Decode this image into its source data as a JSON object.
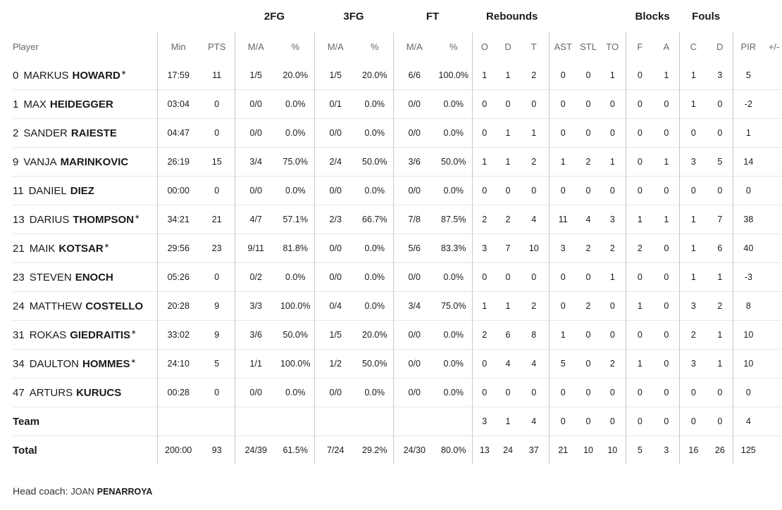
{
  "groups": {
    "fg2": "2FG",
    "fg3": "3FG",
    "ft": "FT",
    "rebounds": "Rebounds",
    "blocks": "Blocks",
    "fouls": "Fouls"
  },
  "columns": [
    "Player",
    "Min",
    "PTS",
    "M/A",
    "%",
    "M/A",
    "%",
    "M/A",
    "%",
    "O",
    "D",
    "T",
    "AST",
    "STL",
    "TO",
    "F",
    "A",
    "C",
    "D",
    "PIR",
    "+/-"
  ],
  "players": [
    {
      "num": "0",
      "first": "MARKUS",
      "last": "HOWARD",
      "starter": true,
      "stats": [
        "17:59",
        "11",
        "1/5",
        "20.0%",
        "1/5",
        "20.0%",
        "6/6",
        "100.0%",
        "1",
        "1",
        "2",
        "0",
        "0",
        "1",
        "0",
        "1",
        "1",
        "3",
        "5",
        ""
      ]
    },
    {
      "num": "1",
      "first": "MAX",
      "last": "HEIDEGGER",
      "starter": false,
      "stats": [
        "03:04",
        "0",
        "0/0",
        "0.0%",
        "0/1",
        "0.0%",
        "0/0",
        "0.0%",
        "0",
        "0",
        "0",
        "0",
        "0",
        "0",
        "0",
        "0",
        "1",
        "0",
        "-2",
        ""
      ]
    },
    {
      "num": "2",
      "first": "SANDER",
      "last": "RAIESTE",
      "starter": false,
      "stats": [
        "04:47",
        "0",
        "0/0",
        "0.0%",
        "0/0",
        "0.0%",
        "0/0",
        "0.0%",
        "0",
        "1",
        "1",
        "0",
        "0",
        "0",
        "0",
        "0",
        "0",
        "0",
        "1",
        ""
      ]
    },
    {
      "num": "9",
      "first": "VANJA",
      "last": "MARINKOVIC",
      "starter": false,
      "stats": [
        "26:19",
        "15",
        "3/4",
        "75.0%",
        "2/4",
        "50.0%",
        "3/6",
        "50.0%",
        "1",
        "1",
        "2",
        "1",
        "2",
        "1",
        "0",
        "1",
        "3",
        "5",
        "14",
        ""
      ]
    },
    {
      "num": "11",
      "first": "DANIEL",
      "last": "DIEZ",
      "starter": false,
      "stats": [
        "00:00",
        "0",
        "0/0",
        "0.0%",
        "0/0",
        "0.0%",
        "0/0",
        "0.0%",
        "0",
        "0",
        "0",
        "0",
        "0",
        "0",
        "0",
        "0",
        "0",
        "0",
        "0",
        ""
      ]
    },
    {
      "num": "13",
      "first": "DARIUS",
      "last": "THOMPSON",
      "starter": true,
      "stats": [
        "34:21",
        "21",
        "4/7",
        "57.1%",
        "2/3",
        "66.7%",
        "7/8",
        "87.5%",
        "2",
        "2",
        "4",
        "11",
        "4",
        "3",
        "1",
        "1",
        "1",
        "7",
        "38",
        ""
      ]
    },
    {
      "num": "21",
      "first": "MAIK",
      "last": "KOTSAR",
      "starter": true,
      "stats": [
        "29:56",
        "23",
        "9/11",
        "81.8%",
        "0/0",
        "0.0%",
        "5/6",
        "83.3%",
        "3",
        "7",
        "10",
        "3",
        "2",
        "2",
        "2",
        "0",
        "1",
        "6",
        "40",
        ""
      ]
    },
    {
      "num": "23",
      "first": "STEVEN",
      "last": "ENOCH",
      "starter": false,
      "stats": [
        "05:26",
        "0",
        "0/2",
        "0.0%",
        "0/0",
        "0.0%",
        "0/0",
        "0.0%",
        "0",
        "0",
        "0",
        "0",
        "0",
        "1",
        "0",
        "0",
        "1",
        "1",
        "-3",
        ""
      ]
    },
    {
      "num": "24",
      "first": "MATTHEW",
      "last": "COSTELLO",
      "starter": false,
      "stats": [
        "20:28",
        "9",
        "3/3",
        "100.0%",
        "0/4",
        "0.0%",
        "3/4",
        "75.0%",
        "1",
        "1",
        "2",
        "0",
        "2",
        "0",
        "1",
        "0",
        "3",
        "2",
        "8",
        ""
      ]
    },
    {
      "num": "31",
      "first": "ROKAS",
      "last": "GIEDRAITIS",
      "starter": true,
      "stats": [
        "33:02",
        "9",
        "3/6",
        "50.0%",
        "1/5",
        "20.0%",
        "0/0",
        "0.0%",
        "2",
        "6",
        "8",
        "1",
        "0",
        "0",
        "0",
        "0",
        "2",
        "1",
        "10",
        ""
      ]
    },
    {
      "num": "34",
      "first": "DAULTON",
      "last": "HOMMES",
      "starter": true,
      "stats": [
        "24:10",
        "5",
        "1/1",
        "100.0%",
        "1/2",
        "50.0%",
        "0/0",
        "0.0%",
        "0",
        "4",
        "4",
        "5",
        "0",
        "2",
        "1",
        "0",
        "3",
        "1",
        "10",
        ""
      ]
    },
    {
      "num": "47",
      "first": "ARTURS",
      "last": "KURUCS",
      "starter": false,
      "stats": [
        "00:28",
        "0",
        "0/0",
        "0.0%",
        "0/0",
        "0.0%",
        "0/0",
        "0.0%",
        "0",
        "0",
        "0",
        "0",
        "0",
        "0",
        "0",
        "0",
        "0",
        "0",
        "0",
        ""
      ]
    }
  ],
  "team": {
    "label": "Team",
    "stats": [
      "",
      "",
      "",
      "",
      "",
      "",
      "",
      "",
      "3",
      "1",
      "4",
      "0",
      "0",
      "0",
      "0",
      "0",
      "0",
      "0",
      "4",
      ""
    ]
  },
  "total": {
    "label": "Total",
    "stats": [
      "200:00",
      "93",
      "24/39",
      "61.5%",
      "7/24",
      "29.2%",
      "24/30",
      "80.0%",
      "13",
      "24",
      "37",
      "21",
      "10",
      "10",
      "5",
      "3",
      "16",
      "26",
      "125",
      ""
    ]
  },
  "coach": {
    "label": "Head coach:",
    "first": "JOAN",
    "last": "PENARROYA"
  }
}
